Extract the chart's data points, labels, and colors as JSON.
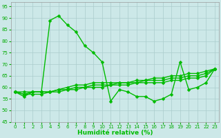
{
  "bg_color": "#cce8e8",
  "grid_color": "#aacccc",
  "line_color": "#00bb00",
  "marker_color": "#00bb00",
  "xlabel": "Humidité relative (%)",
  "xlabel_color": "#00bb00",
  "tick_color": "#00aa00",
  "ylim": [
    45,
    97
  ],
  "xlim": [
    -0.5,
    23.5
  ],
  "yticks": [
    45,
    50,
    55,
    60,
    65,
    70,
    75,
    80,
    85,
    90,
    95
  ],
  "xticks": [
    0,
    1,
    2,
    3,
    4,
    5,
    6,
    7,
    8,
    9,
    10,
    11,
    12,
    13,
    14,
    15,
    16,
    17,
    18,
    19,
    20,
    21,
    22,
    23
  ],
  "series": [
    [
      58,
      56,
      58,
      58,
      89,
      91,
      87,
      84,
      78,
      75,
      71,
      54,
      59,
      58,
      56,
      56,
      54,
      55,
      57,
      71,
      59,
      60,
      62,
      68
    ],
    [
      58,
      58,
      58,
      58,
      58,
      59,
      60,
      61,
      61,
      62,
      62,
      62,
      62,
      62,
      63,
      63,
      64,
      64,
      65,
      65,
      66,
      66,
      67,
      68
    ],
    [
      58,
      57,
      58,
      58,
      58,
      59,
      59,
      60,
      60,
      61,
      61,
      61,
      62,
      62,
      62,
      63,
      63,
      63,
      64,
      64,
      65,
      65,
      66,
      68
    ],
    [
      58,
      57,
      57,
      57,
      58,
      58,
      59,
      59,
      60,
      60,
      60,
      61,
      61,
      61,
      62,
      62,
      62,
      62,
      63,
      63,
      64,
      64,
      65,
      68
    ]
  ],
  "marker": "D",
  "markersize": 2.5,
  "linewidth": 1.0,
  "figwidth": 3.2,
  "figheight": 2.0,
  "dpi": 100,
  "xlabel_fontsize": 6.5,
  "tick_fontsize": 5.0
}
